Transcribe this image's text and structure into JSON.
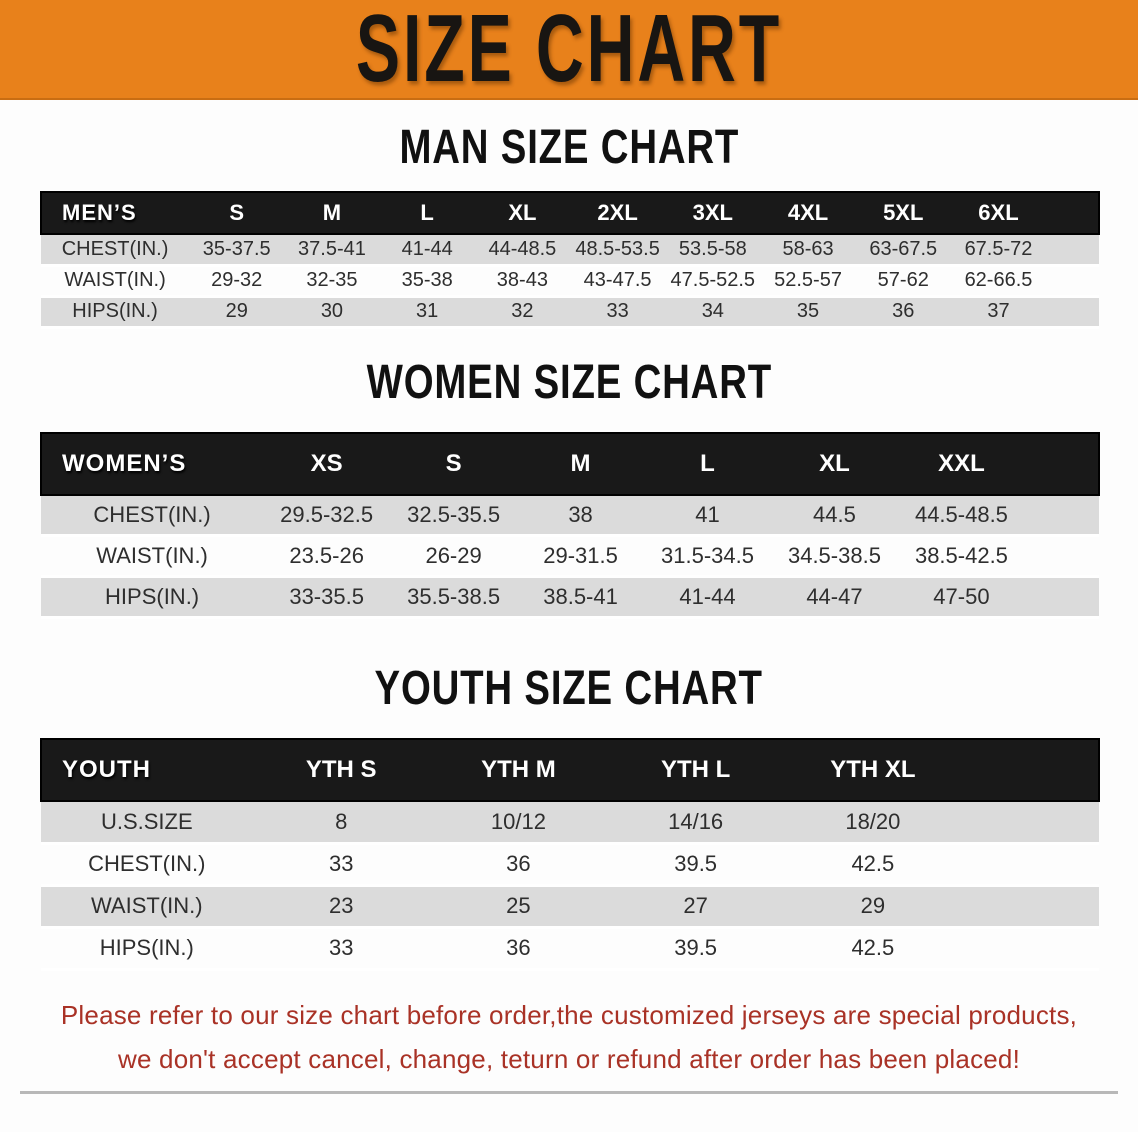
{
  "banner": {
    "title": "SIZE CHART",
    "bg_color": "#E8811B",
    "text_color": "#181512"
  },
  "colors": {
    "header_bar": "#191919",
    "row_stripe": "#DBDBDB",
    "footer_text": "#A93226",
    "table_bottom_rule": "#4e4e4e"
  },
  "sections": {
    "men": {
      "title": "MAN SIZE CHART",
      "header_label": "MEN’S",
      "columns": [
        "S",
        "M",
        "L",
        "XL",
        "2XL",
        "3XL",
        "4XL",
        "5XL",
        "6XL"
      ],
      "rows": [
        {
          "label": "CHEST(IN.)",
          "values": [
            "35-37.5",
            "37.5-41",
            "41-44",
            "44-48.5",
            "48.5-53.5",
            "53.5-58",
            "58-63",
            "63-67.5",
            "67.5-72"
          ]
        },
        {
          "label": "WAIST(IN.)",
          "values": [
            "29-32",
            "32-35",
            "35-38",
            "38-43",
            "43-47.5",
            "47.5-52.5",
            "52.5-57",
            "57-62",
            "62-66.5"
          ]
        },
        {
          "label": "HIPS(IN.)",
          "values": [
            "29",
            "30",
            "31",
            "32",
            "33",
            "34",
            "35",
            "36",
            "37"
          ]
        }
      ]
    },
    "women": {
      "title": "WOMEN SIZE CHART",
      "header_label": "WOMEN’S",
      "columns": [
        "XS",
        "S",
        "M",
        "L",
        "XL",
        "XXL"
      ],
      "rows": [
        {
          "label": "CHEST(IN.)",
          "values": [
            "29.5-32.5",
            "32.5-35.5",
            "38",
            "41",
            "44.5",
            "44.5-48.5"
          ]
        },
        {
          "label": "WAIST(IN.)",
          "values": [
            "23.5-26",
            "26-29",
            "29-31.5",
            "31.5-34.5",
            "34.5-38.5",
            "38.5-42.5"
          ]
        },
        {
          "label": "HIPS(IN.)",
          "values": [
            "33-35.5",
            "35.5-38.5",
            "38.5-41",
            "41-44",
            "44-47",
            "47-50"
          ]
        }
      ]
    },
    "youth": {
      "title": "YOUTH SIZE CHART",
      "header_label": "YOUTH",
      "columns": [
        "YTH S",
        "YTH M",
        "YTH L",
        "YTH XL"
      ],
      "rows": [
        {
          "label": "U.S.SIZE",
          "values": [
            "8",
            "10/12",
            "14/16",
            "18/20"
          ]
        },
        {
          "label": "CHEST(IN.)",
          "values": [
            "33",
            "36",
            "39.5",
            "42.5"
          ]
        },
        {
          "label": "WAIST(IN.)",
          "values": [
            "23",
            "25",
            "27",
            "29"
          ]
        },
        {
          "label": "HIPS(IN.)",
          "values": [
            "33",
            "36",
            "39.5",
            "42.5"
          ]
        }
      ]
    }
  },
  "footer": {
    "line1": "Please refer to our size chart before order,the customized jerseys are special products,",
    "line2": "we don't accept cancel, change, teturn or refund after order has been placed!"
  }
}
